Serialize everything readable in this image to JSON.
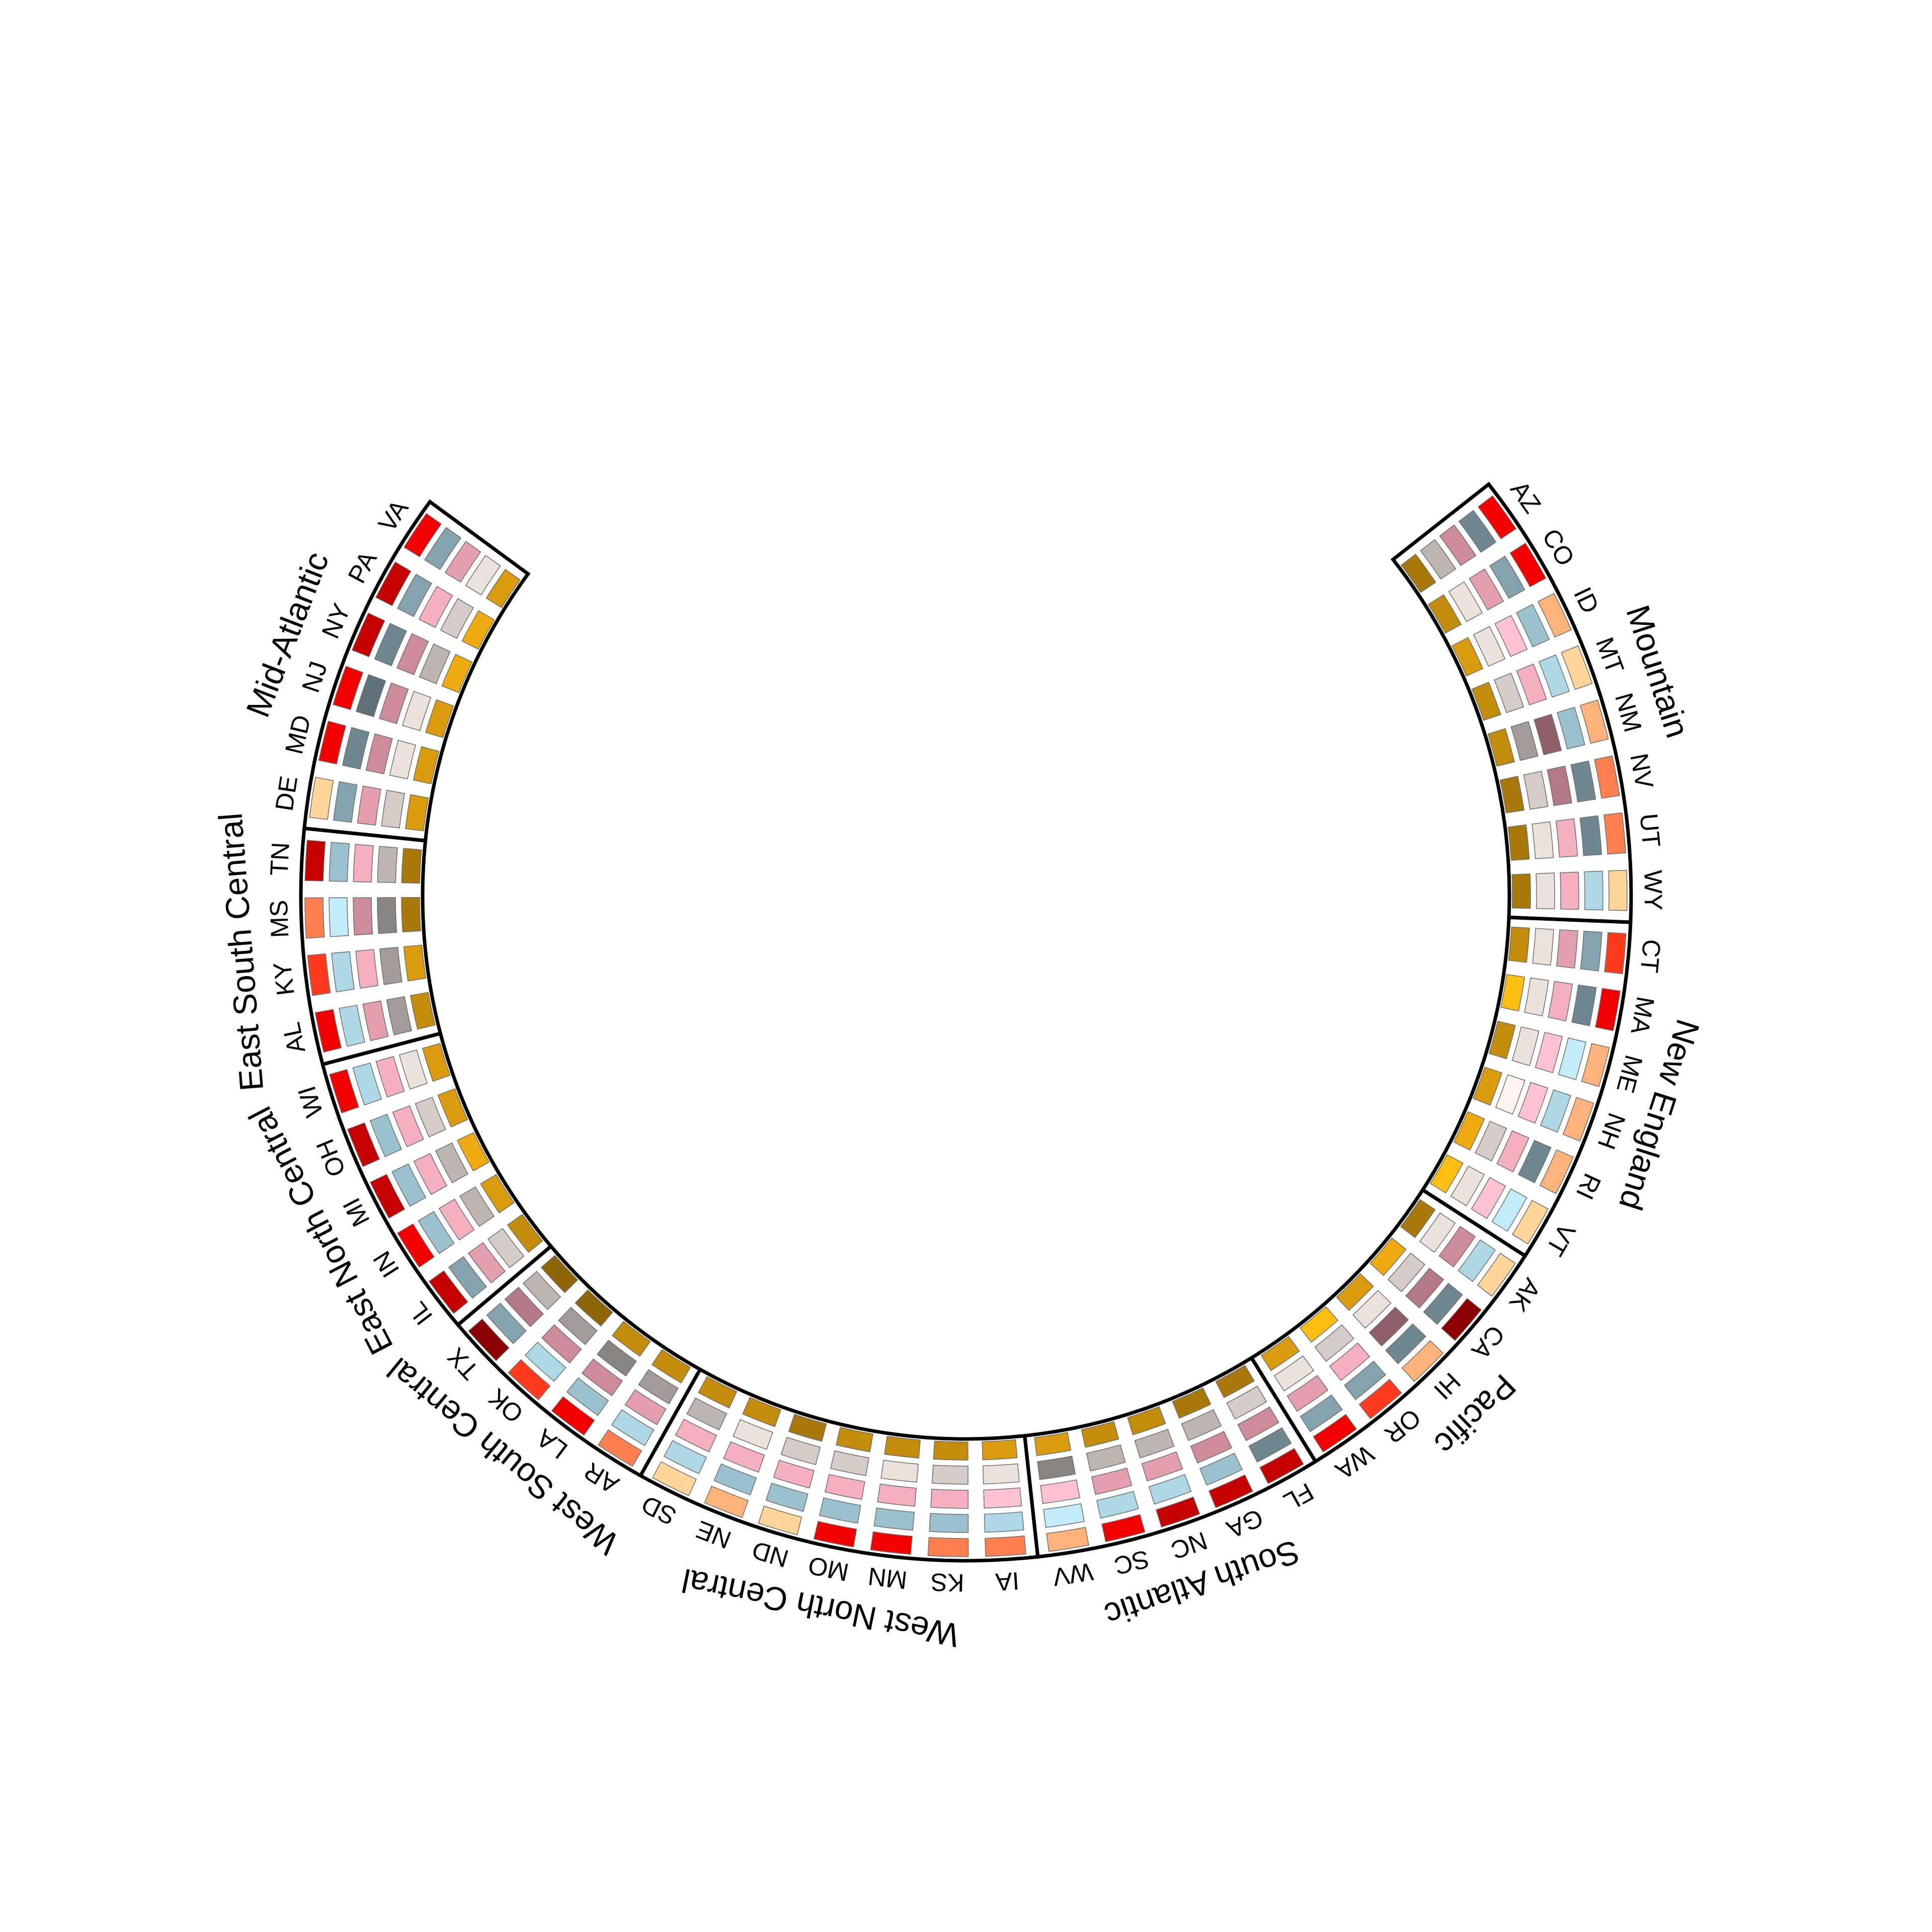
{
  "chart_data": {
    "type": "heatmap",
    "layout": "circular",
    "title": "",
    "ring_order": "outer to inner",
    "ring_colors": [
      [
        "#FFD59A",
        "#FFB27A",
        "#FF7F50",
        "#FF3B1F",
        "#F20000",
        "#C40000",
        "#8B0000"
      ],
      [
        "#C3ECFA",
        "#AED8E6",
        "#9BC1CF",
        "#84A3AE",
        "#6E8790",
        "#5F7178"
      ],
      [
        "#FFC2D1",
        "#F4B0BE",
        "#E49FAE",
        "#CE8C9A",
        "#B37985",
        "#8F5F68"
      ],
      [
        "#FFF5EE",
        "#EBE2DC",
        "#D6CCC7",
        "#BDB5B0",
        "#A29B97",
        "#8A8581"
      ],
      [
        "#FDBE14",
        "#EEAA10",
        "#DA9C0E",
        "#C48C0C",
        "#A8780A",
        "#8E6508"
      ]
    ],
    "regions": [
      {
        "name": "Mid-Atlantic",
        "states": [
          {
            "abbr": "VA",
            "levels": [
              4,
              3,
              2,
              1,
              2
            ]
          },
          {
            "abbr": "PA",
            "levels": [
              5,
              3,
              1,
              2,
              1
            ]
          },
          {
            "abbr": "NY",
            "levels": [
              5,
              4,
              3,
              3,
              1
            ]
          },
          {
            "abbr": "NJ",
            "levels": [
              4,
              5,
              3,
              1,
              2
            ]
          },
          {
            "abbr": "MD",
            "levels": [
              4,
              4,
              3,
              1,
              2
            ]
          },
          {
            "abbr": "DE",
            "levels": [
              0,
              3,
              2,
              2,
              2
            ]
          }
        ]
      },
      {
        "name": "East South Central",
        "states": [
          {
            "abbr": "TN",
            "levels": [
              5,
              2,
              1,
              3,
              4
            ]
          },
          {
            "abbr": "MS",
            "levels": [
              2,
              0,
              3,
              5,
              4
            ]
          },
          {
            "abbr": "KY",
            "levels": [
              3,
              1,
              1,
              4,
              2
            ]
          },
          {
            "abbr": "AL",
            "levels": [
              4,
              1,
              2,
              4,
              3
            ]
          }
        ]
      },
      {
        "name": "East North Central",
        "states": [
          {
            "abbr": "WI",
            "levels": [
              4,
              1,
              1,
              1,
              2
            ]
          },
          {
            "abbr": "OH",
            "levels": [
              5,
              2,
              1,
              2,
              2
            ]
          },
          {
            "abbr": "MI",
            "levels": [
              5,
              2,
              1,
              3,
              1
            ]
          },
          {
            "abbr": "IN",
            "levels": [
              4,
              2,
              1,
              3,
              2
            ]
          },
          {
            "abbr": "IL",
            "levels": [
              5,
              3,
              2,
              2,
              3
            ]
          }
        ]
      },
      {
        "name": "West South Central",
        "states": [
          {
            "abbr": "TX",
            "levels": [
              6,
              3,
              4,
              3,
              5
            ]
          },
          {
            "abbr": "OK",
            "levels": [
              3,
              1,
              3,
              4,
              5
            ]
          },
          {
            "abbr": "LA",
            "levels": [
              4,
              2,
              3,
              5,
              3
            ]
          },
          {
            "abbr": "AR",
            "levels": [
              2,
              1,
              2,
              4,
              3
            ]
          }
        ]
      },
      {
        "name": "West North Central",
        "states": [
          {
            "abbr": "SD",
            "levels": [
              0,
              1,
              1,
              3,
              3
            ]
          },
          {
            "abbr": "NE",
            "levels": [
              1,
              2,
              1,
              1,
              3
            ]
          },
          {
            "abbr": "ND",
            "levels": [
              0,
              2,
              1,
              2,
              4
            ]
          },
          {
            "abbr": "MO",
            "levels": [
              4,
              2,
              1,
              2,
              3
            ]
          },
          {
            "abbr": "MN",
            "levels": [
              4,
              2,
              1,
              1,
              3
            ]
          },
          {
            "abbr": "KS",
            "levels": [
              2,
              2,
              1,
              2,
              3
            ]
          },
          {
            "abbr": "IA",
            "levels": [
              2,
              1,
              0,
              1,
              2
            ]
          }
        ]
      },
      {
        "name": "South Atlantic",
        "states": [
          {
            "abbr": "WV",
            "levels": [
              1,
              0,
              0,
              5,
              2
            ]
          },
          {
            "abbr": "SC",
            "levels": [
              4,
              1,
              2,
              3,
              3
            ]
          },
          {
            "abbr": "NC",
            "levels": [
              5,
              1,
              2,
              3,
              3
            ]
          },
          {
            "abbr": "GA",
            "levels": [
              5,
              2,
              3,
              3,
              4
            ]
          },
          {
            "abbr": "FL",
            "levels": [
              5,
              4,
              3,
              2,
              4
            ]
          }
        ]
      },
      {
        "name": "Pacific",
        "states": [
          {
            "abbr": "WA",
            "levels": [
              4,
              3,
              2,
              1,
              2
            ]
          },
          {
            "abbr": "OR",
            "levels": [
              3,
              3,
              1,
              2,
              0
            ]
          },
          {
            "abbr": "HI",
            "levels": [
              1,
              4,
              5,
              1,
              2
            ]
          },
          {
            "abbr": "CA",
            "levels": [
              6,
              4,
              4,
              2,
              1
            ]
          },
          {
            "abbr": "AK",
            "levels": [
              0,
              1,
              3,
              1,
              4
            ]
          }
        ]
      },
      {
        "name": "New England",
        "states": [
          {
            "abbr": "VT",
            "levels": [
              0,
              0,
              0,
              1,
              0
            ]
          },
          {
            "abbr": "RI",
            "levels": [
              1,
              4,
              1,
              2,
              1
            ]
          },
          {
            "abbr": "NH",
            "levels": [
              1,
              1,
              0,
              0,
              2
            ]
          },
          {
            "abbr": "ME",
            "levels": [
              1,
              0,
              0,
              1,
              3
            ]
          },
          {
            "abbr": "MA",
            "levels": [
              4,
              4,
              1,
              1,
              0
            ]
          },
          {
            "abbr": "CT",
            "levels": [
              3,
              3,
              2,
              1,
              3
            ]
          }
        ]
      },
      {
        "name": "Mountain",
        "states": [
          {
            "abbr": "WY",
            "levels": [
              0,
              1,
              1,
              1,
              4
            ]
          },
          {
            "abbr": "UT",
            "levels": [
              2,
              4,
              1,
              1,
              4
            ]
          },
          {
            "abbr": "NV",
            "levels": [
              2,
              4,
              4,
              2,
              4
            ]
          },
          {
            "abbr": "NM",
            "levels": [
              1,
              2,
              5,
              4,
              3
            ]
          },
          {
            "abbr": "MT",
            "levels": [
              0,
              1,
              1,
              2,
              3
            ]
          },
          {
            "abbr": "ID",
            "levels": [
              1,
              2,
              0,
              1,
              2
            ]
          },
          {
            "abbr": "CO",
            "levels": [
              4,
              3,
              2,
              1,
              3
            ]
          },
          {
            "abbr": "AZ",
            "levels": [
              4,
              4,
              3,
              3,
              4
            ]
          }
        ]
      }
    ]
  }
}
